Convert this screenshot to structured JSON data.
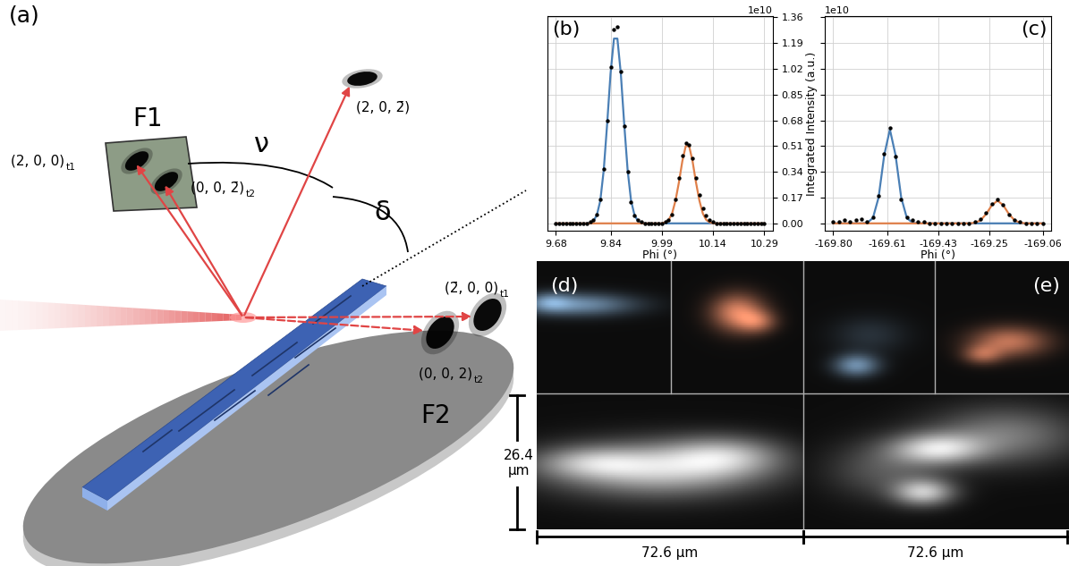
{
  "panel_labels": [
    "(a)",
    "(b)",
    "(c)",
    "(d)",
    "(e)"
  ],
  "diagram": {
    "detectors": [
      "F1",
      "F2"
    ],
    "angles": [
      "ν",
      "δ"
    ],
    "reflections": [
      {
        "text": "(2, 0, 0)",
        "sub": "t1"
      },
      {
        "text": "(0, 0, 2̄)",
        "sub": "t2"
      },
      {
        "text": "(2, 0, 2̄)"
      },
      {
        "text": "(2̄, 0, 0)",
        "sub": "t1"
      },
      {
        "text": "(0, 0, 2)",
        "sub": "t2"
      }
    ]
  },
  "chart_data": [
    {
      "type": "line",
      "xlabel": "Phi (°)",
      "annotations": [
        "1e10"
      ],
      "x": [
        9.68,
        9.69,
        9.7,
        9.71,
        9.72,
        9.73,
        9.74,
        9.75,
        9.76,
        9.77,
        9.78,
        9.79,
        9.8,
        9.81,
        9.82,
        9.83,
        9.84,
        9.85,
        9.86,
        9.87,
        9.88,
        9.89,
        9.9,
        9.91,
        9.92,
        9.93,
        9.94,
        9.95,
        9.96,
        9.97,
        9.98,
        9.99,
        10.0,
        10.01,
        10.02,
        10.03,
        10.04,
        10.05,
        10.06,
        10.07,
        10.08,
        10.09,
        10.1,
        10.11,
        10.12,
        10.13,
        10.14,
        10.15,
        10.16,
        10.17,
        10.18,
        10.19,
        10.2,
        10.21,
        10.22,
        10.23,
        10.24,
        10.25,
        10.26,
        10.27,
        10.28,
        10.29
      ],
      "series": [
        {
          "type": "line",
          "color": "#4a7fb5",
          "values": [
            0,
            0,
            0,
            0,
            0,
            0,
            0,
            0,
            0,
            0.001,
            0.004,
            0.016,
            0.055,
            0.15,
            0.35,
            0.655,
            0.99,
            1.22,
            1.22,
            0.99,
            0.655,
            0.35,
            0.15,
            0.055,
            0.016,
            0.004,
            0.001,
            0,
            0,
            0,
            0,
            0,
            0,
            0,
            0,
            0,
            0,
            0,
            0,
            0,
            0,
            0,
            0,
            0,
            0,
            0,
            0,
            0,
            0,
            0,
            0,
            0,
            0,
            0,
            0,
            0,
            0,
            0,
            0,
            0,
            0,
            0
          ]
        },
        {
          "type": "line",
          "color": "#e0804a",
          "values": [
            0,
            0,
            0,
            0,
            0,
            0,
            0,
            0,
            0,
            0,
            0,
            0,
            0,
            0,
            0,
            0,
            0,
            0,
            0,
            0,
            0,
            0,
            0,
            0,
            0,
            0,
            0,
            0,
            0,
            0,
            0,
            0,
            0.007,
            0.023,
            0.065,
            0.15,
            0.27,
            0.41,
            0.51,
            0.51,
            0.41,
            0.27,
            0.15,
            0.065,
            0.023,
            0.007,
            0,
            0,
            0,
            0,
            0,
            0,
            0,
            0,
            0,
            0,
            0,
            0,
            0,
            0,
            0,
            0
          ]
        },
        {
          "type": "scatter",
          "color": "#000000",
          "marker": "o",
          "values": [
            0,
            0,
            0,
            0,
            0,
            0,
            0,
            0,
            0,
            0,
            0.01,
            0.02,
            0.06,
            0.16,
            0.36,
            0.68,
            1.03,
            1.28,
            1.3,
            1.0,
            0.64,
            0.34,
            0.14,
            0.05,
            0.02,
            0.01,
            0,
            0,
            0,
            0,
            0,
            0,
            0.01,
            0.02,
            0.06,
            0.16,
            0.3,
            0.45,
            0.53,
            0.52,
            0.43,
            0.3,
            0.19,
            0.1,
            0.05,
            0.02,
            0.01,
            0,
            0,
            0,
            0,
            0,
            0,
            0,
            0,
            0,
            0,
            0,
            0,
            0,
            0,
            0
          ]
        }
      ],
      "xlim": [
        9.655,
        10.315
      ],
      "ylim": [
        -0.05,
        1.37
      ],
      "xticks": [
        9.68,
        9.84,
        9.99,
        10.14,
        10.29
      ],
      "yticks": [
        {
          "value": 0.0,
          "label": "0.00"
        },
        0.17,
        0.34,
        0.51,
        0.68,
        0.85,
        1.02,
        1.19,
        1.36
      ],
      "grid": true,
      "tick_labels": true
    },
    {
      "type": "line",
      "xlabel": "Phi (°)",
      "ylabel": "Integrated Intensity (a.u.)",
      "annotations": [
        "1e10"
      ],
      "x": [
        -169.8,
        -169.78,
        -169.76,
        -169.74,
        -169.72,
        -169.7,
        -169.68,
        -169.66,
        -169.64,
        -169.62,
        -169.6,
        -169.58,
        -169.56,
        -169.54,
        -169.52,
        -169.5,
        -169.48,
        -169.46,
        -169.44,
        -169.42,
        -169.4,
        -169.38,
        -169.36,
        -169.34,
        -169.32,
        -169.3,
        -169.28,
        -169.26,
        -169.24,
        -169.22,
        -169.2,
        -169.18,
        -169.16,
        -169.14,
        -169.12,
        -169.1,
        -169.08,
        -169.06
      ],
      "series": [
        {
          "type": "line",
          "color": "#4a7fb5",
          "values": [
            0,
            0,
            0,
            0,
            0,
            0,
            0.004,
            0.035,
            0.17,
            0.45,
            0.62,
            0.45,
            0.17,
            0.035,
            0.004,
            0,
            0,
            0,
            0,
            0,
            0,
            0,
            0,
            0,
            0,
            0,
            0,
            0,
            0,
            0,
            0,
            0,
            0,
            0,
            0,
            0,
            0,
            0
          ]
        },
        {
          "type": "line",
          "color": "#e0804a",
          "values": [
            0,
            0,
            0,
            0,
            0,
            0,
            0,
            0,
            0,
            0,
            0,
            0,
            0,
            0,
            0,
            0,
            0,
            0,
            0,
            0,
            0,
            0,
            0,
            0,
            0,
            0.004,
            0.02,
            0.062,
            0.12,
            0.15,
            0.12,
            0.062,
            0.02,
            0.004,
            0,
            0,
            0,
            0
          ]
        },
        {
          "type": "scatter",
          "color": "#000000",
          "marker": "o",
          "values": [
            0.01,
            0.01,
            0.02,
            0.01,
            0.02,
            0.03,
            0.01,
            0.04,
            0.18,
            0.46,
            0.63,
            0.44,
            0.16,
            0.04,
            0.02,
            0.01,
            0.01,
            0,
            0,
            0,
            0,
            0,
            0,
            0,
            0,
            0.01,
            0.03,
            0.07,
            0.13,
            0.16,
            0.12,
            0.06,
            0.02,
            0.01,
            0,
            0,
            0,
            0
          ]
        }
      ],
      "xlim": [
        -169.83,
        -169.03
      ],
      "ylim": [
        -0.05,
        1.37
      ],
      "xticks": [
        {
          "value": -169.8,
          "label": "-169.80"
        },
        -169.61,
        -169.43,
        -169.25,
        -169.06
      ],
      "yticks": [
        {
          "value": 0.0,
          "label": "0.00"
        },
        0.17,
        0.34,
        0.51,
        0.68,
        0.85,
        1.02,
        1.19,
        1.36
      ],
      "grid": true,
      "tick_labels": "x"
    }
  ],
  "images": {
    "scale_bars": {
      "height": "26.4\nμm",
      "widths": [
        "72.6 μm",
        "72.6 μm"
      ]
    }
  }
}
